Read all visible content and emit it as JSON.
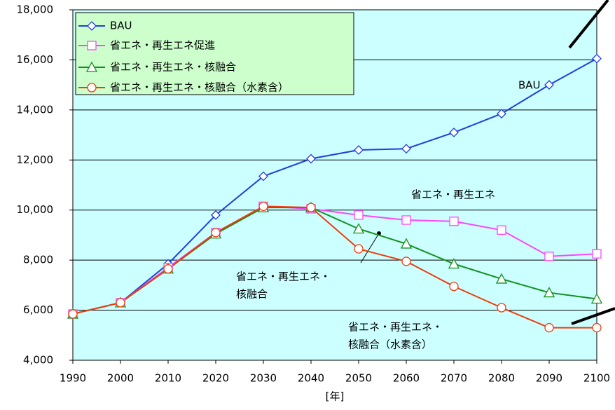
{
  "chart_data": {
    "type": "line",
    "x": [
      1990,
      2000,
      2010,
      2020,
      2030,
      2040,
      2050,
      2060,
      2070,
      2080,
      2090,
      2100
    ],
    "xlim": [
      1990,
      2100
    ],
    "xticks": [
      1990,
      2000,
      2010,
      2020,
      2030,
      2040,
      2050,
      2060,
      2070,
      2080,
      2090,
      2100
    ],
    "xlabel": "[年]",
    "ylim": [
      4000,
      18000
    ],
    "yticks": [
      {
        "value": 4000,
        "label": "4,000"
      },
      {
        "value": 6000,
        "label": "6,000"
      },
      {
        "value": 8000,
        "label": "8,000"
      },
      {
        "value": 10000,
        "label": "10,000"
      },
      {
        "value": 12000,
        "label": "12,000"
      },
      {
        "value": 14000,
        "label": "14,000"
      },
      {
        "value": 16000,
        "label": "16,000"
      },
      {
        "value": 18000,
        "label": "18,000"
      }
    ],
    "grid": true,
    "legend": "upper left",
    "series": [
      {
        "name": "BAU",
        "color": "#1f3fe0",
        "marker": "diamond",
        "values": [
          5850,
          6300,
          7850,
          9800,
          11350,
          12050,
          12400,
          12450,
          13100,
          13850,
          15000,
          16050
        ]
      },
      {
        "name": "省エネ・再生エネ促進",
        "color": "#ff44ff",
        "marker": "square",
        "values": [
          5850,
          6300,
          7700,
          9100,
          10150,
          10050,
          9800,
          9600,
          9550,
          9200,
          8150,
          8250
        ]
      },
      {
        "name": "省エネ・再生エネ・核融合",
        "color": "#11901a",
        "marker": "triangle",
        "values": [
          5850,
          6300,
          7650,
          9050,
          10100,
          10100,
          9250,
          8650,
          7850,
          7250,
          6700,
          6450
        ]
      },
      {
        "name": "省エネ・再生エネ・核融合（水素含）",
        "color": "#f03c0a",
        "marker": "circle",
        "values": [
          5850,
          6300,
          7650,
          9100,
          10150,
          10100,
          8450,
          7950,
          6950,
          6100,
          5300,
          5300
        ]
      }
    ],
    "annotations": [
      [
        "BAU"
      ],
      [
        "省エネ・再生エネ"
      ],
      [
        "省エネ・再生エネ・",
        "核融合"
      ],
      [
        "省エネ・再生エネ・",
        "核融合（水素含）"
      ]
    ]
  }
}
